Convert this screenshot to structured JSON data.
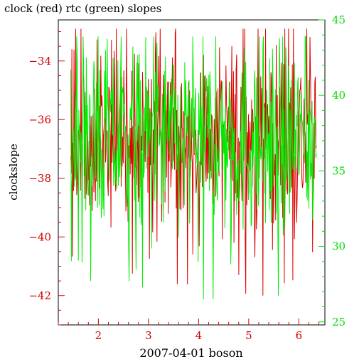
{
  "chart_data": {
    "type": "line",
    "title": "clock (red) rtc (green) slopes",
    "xlabel": "2007-04-01 boson",
    "ylabel": "clockslope",
    "grid": false,
    "legend": "none",
    "x_range": [
      1.2,
      6.52
    ],
    "x_ticks": [
      2,
      3,
      4,
      5,
      6
    ],
    "x_tick_labels": [
      "2",
      "3",
      "4",
      "5",
      "6"
    ],
    "x_minor_step": 0.2,
    "y_left_range": [
      -43.0,
      -32.6
    ],
    "y_left_ticks": [
      -42,
      -40,
      -38,
      -36,
      -34
    ],
    "y_left_tick_labels": [
      "−42",
      "−40",
      "−38",
      "−36",
      "−34"
    ],
    "y_right_range": [
      24.8,
      45
    ],
    "y_right_ticks": [
      25,
      30,
      35,
      40,
      45
    ],
    "y_right_tick_labels": [
      "25",
      "30",
      "35",
      "40",
      "45"
    ],
    "series": [
      {
        "name": "clock",
        "color": "#dd0000",
        "axis": "left",
        "x_range": [
          1.45,
          6.35
        ],
        "samples": 460,
        "mean": -36.7,
        "range": [
          -42.0,
          -32.9
        ]
      },
      {
        "name": "rtc",
        "color": "#00ee00",
        "axis": "right",
        "x_range": [
          1.45,
          6.35
        ],
        "samples": 460,
        "mean": 37.0,
        "range": [
          26.5,
          43.9
        ]
      }
    ]
  }
}
